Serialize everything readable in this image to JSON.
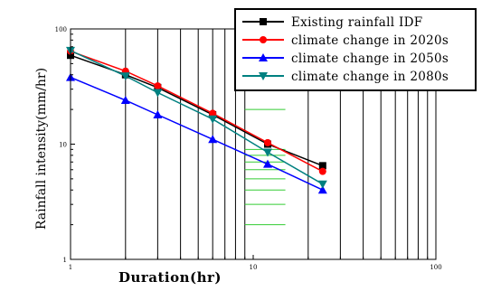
{
  "chart_data": {
    "type": "line",
    "title": "",
    "xlabel": "Duration(hr)",
    "ylabel": "Rainfall intensity(mm/hr)",
    "x_scale": "log",
    "y_scale": "log",
    "xlim": [
      1,
      100
    ],
    "ylim": [
      1,
      100
    ],
    "x_tick_labels": [
      "1",
      "10",
      "100"
    ],
    "y_tick_labels": [
      "1",
      "10",
      "100"
    ],
    "x_tick_values": [
      1,
      10,
      100
    ],
    "y_tick_values": [
      1,
      10,
      100
    ],
    "grid": "vertical lines at minor x ticks, partial green horizontal lines",
    "legend_position": "top-right",
    "x": [
      1,
      2,
      3,
      6,
      12,
      24
    ],
    "series": [
      {
        "name": "Existing rainfall IDF",
        "color": "#000000",
        "marker": "square",
        "values": [
          59,
          40,
          31,
          18,
          10,
          6.5
        ]
      },
      {
        "name": "climate change in 2020s",
        "color": "#ff0000",
        "marker": "circle",
        "values": [
          64,
          43,
          32,
          18.5,
          10.3,
          5.8
        ]
      },
      {
        "name": "climate change in 2050s",
        "color": "#0000ff",
        "marker": "triangle",
        "values": [
          38,
          24,
          18,
          11,
          6.7,
          4
        ]
      },
      {
        "name": "climate change in 2080s",
        "color": "#008080",
        "marker": "triangle-down",
        "values": [
          65,
          39,
          28,
          16.5,
          8.5,
          4.5
        ]
      }
    ]
  }
}
